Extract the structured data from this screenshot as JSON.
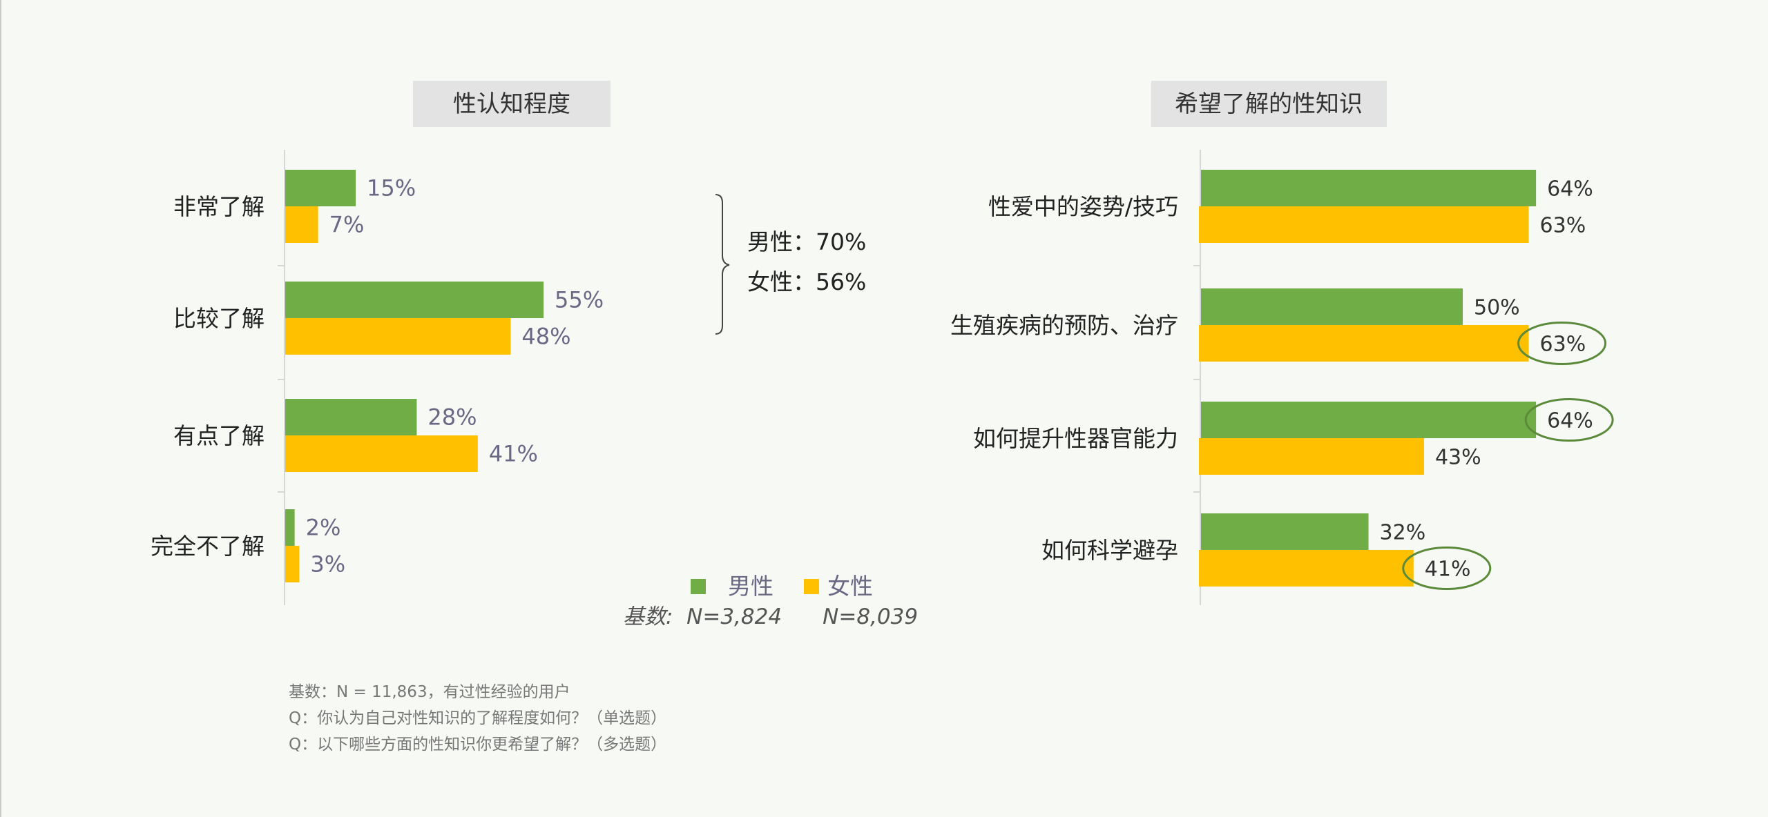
{
  "colors": {
    "male": "#70ad47",
    "female": "#ffc000",
    "circle": "#5b8a3a",
    "title_bg": "#e3e3e3"
  },
  "chart_data": [
    {
      "type": "bar",
      "orientation": "horizontal",
      "title": "性认知程度",
      "categories": [
        "非常了解",
        "比较了解",
        "有点了解",
        "完全不了解"
      ],
      "series": [
        {
          "name": "男性",
          "values": [
            15,
            55,
            28,
            2
          ],
          "labels": [
            "15%",
            "55%",
            "28%",
            "2%"
          ]
        },
        {
          "name": "女性",
          "values": [
            7,
            48,
            41,
            3
          ],
          "labels": [
            "7%",
            "48%",
            "41%",
            "3%"
          ]
        }
      ],
      "grid": false
    },
    {
      "type": "bar",
      "orientation": "horizontal",
      "title": "希望了解的性知识",
      "categories": [
        "性爱中的姿势/技巧",
        "生殖疾病的预防、治疗",
        "如何提升性器官能力",
        "如何科学避孕"
      ],
      "series": [
        {
          "name": "男性",
          "values": [
            64,
            50,
            64,
            32
          ],
          "labels": [
            "64%",
            "50%",
            "64%",
            "32%"
          ]
        },
        {
          "name": "女性",
          "values": [
            63,
            63,
            43,
            41
          ],
          "labels": [
            "63%",
            "63%",
            "43%",
            "41%"
          ]
        }
      ],
      "grid": false
    }
  ],
  "brace": {
    "male_text": "男性：70%",
    "female_text": "女性：56%"
  },
  "legend": {
    "male": "男性",
    "female": "女性",
    "base": "基数:  N=3,824      N=8,039"
  },
  "notes": [
    "基数：N = 11,863，有过性经验的用户",
    "Q：你认为自己对性知识的了解程度如何？（单选题）",
    "Q：以下哪些方面的性知识你更希望了解？（多选题）"
  ]
}
